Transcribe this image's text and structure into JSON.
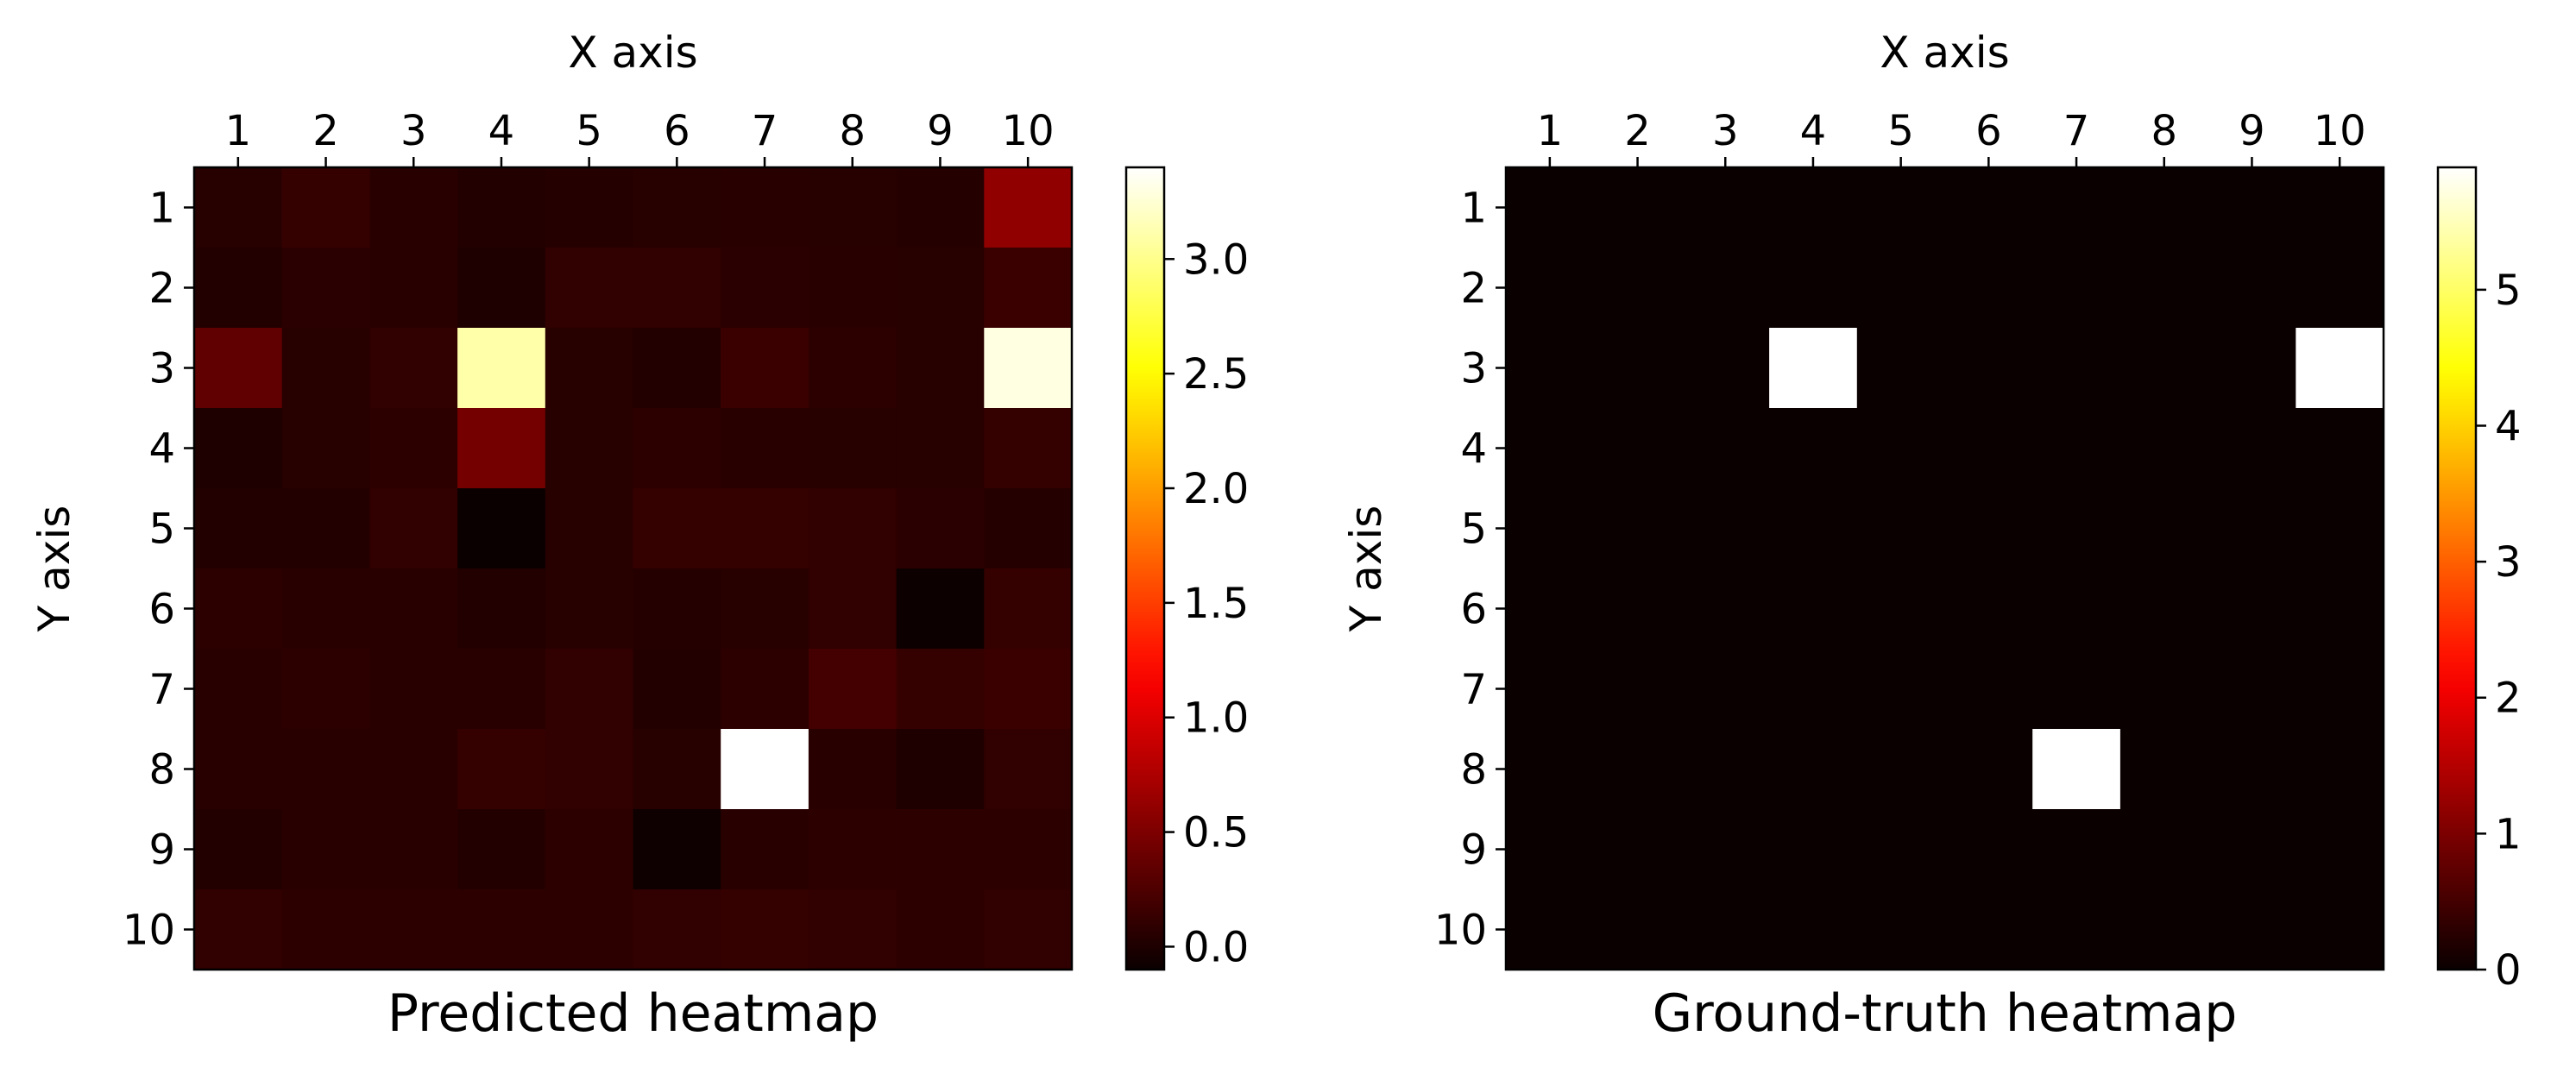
{
  "chart_data": [
    {
      "type": "heatmap",
      "title": "Predicted heatmap",
      "xlabel": "X axis",
      "ylabel": "Y axis",
      "x_categories": [
        "1",
        "2",
        "3",
        "4",
        "5",
        "6",
        "7",
        "8",
        "9",
        "10"
      ],
      "y_categories": [
        "1",
        "2",
        "3",
        "4",
        "5",
        "6",
        "7",
        "8",
        "9",
        "10"
      ],
      "colormap": "hot",
      "color_range": [
        -0.1,
        3.4
      ],
      "colorbar_ticks": [
        "0.0",
        "0.5",
        "1.0",
        "1.5",
        "2.0",
        "2.5",
        "3.0"
      ],
      "values": [
        [
          0.05,
          0.12,
          0.06,
          0.03,
          0.04,
          0.05,
          0.06,
          0.05,
          0.04,
          0.6
        ],
        [
          0.02,
          0.07,
          0.06,
          0.0,
          0.1,
          0.1,
          0.07,
          0.06,
          0.05,
          0.15
        ],
        [
          0.35,
          0.05,
          0.1,
          3.1,
          0.05,
          0.02,
          0.15,
          0.08,
          0.05,
          3.3
        ],
        [
          0.0,
          0.05,
          0.08,
          0.45,
          0.05,
          0.08,
          0.06,
          0.05,
          0.05,
          0.12
        ],
        [
          0.02,
          0.03,
          0.1,
          -0.1,
          0.05,
          0.12,
          0.12,
          0.1,
          0.07,
          0.04
        ],
        [
          0.08,
          0.06,
          0.06,
          0.02,
          0.05,
          0.04,
          0.05,
          0.1,
          -0.09,
          0.12
        ],
        [
          0.06,
          0.08,
          0.06,
          0.06,
          0.1,
          0.03,
          0.08,
          0.2,
          0.12,
          0.15
        ],
        [
          0.06,
          0.06,
          0.06,
          0.12,
          0.1,
          0.05,
          3.4,
          0.06,
          0.0,
          0.1
        ],
        [
          0.02,
          0.06,
          0.06,
          0.03,
          0.08,
          -0.08,
          0.06,
          0.08,
          0.08,
          0.08
        ],
        [
          0.1,
          0.08,
          0.08,
          0.08,
          0.08,
          0.1,
          0.12,
          0.1,
          0.08,
          0.1
        ]
      ]
    },
    {
      "type": "heatmap",
      "title": "Ground-truth heatmap",
      "xlabel": "X axis",
      "ylabel": "Y axis",
      "x_categories": [
        "1",
        "2",
        "3",
        "4",
        "5",
        "6",
        "7",
        "8",
        "9",
        "10"
      ],
      "y_categories": [
        "1",
        "2",
        "3",
        "4",
        "5",
        "6",
        "7",
        "8",
        "9",
        "10"
      ],
      "colormap": "hot",
      "color_range": [
        0,
        5.9
      ],
      "colorbar_ticks": [
        "0",
        "1",
        "2",
        "3",
        "4",
        "5"
      ],
      "values": [
        [
          0,
          0,
          0,
          0,
          0,
          0,
          0,
          0,
          0,
          0
        ],
        [
          0,
          0,
          0,
          0,
          0,
          0,
          0,
          0,
          0,
          0
        ],
        [
          0,
          0,
          0,
          5.9,
          0,
          0,
          0,
          0,
          0,
          5.9
        ],
        [
          0,
          0,
          0,
          0,
          0,
          0,
          0,
          0,
          0,
          0
        ],
        [
          0,
          0,
          0,
          0,
          0,
          0,
          0,
          0,
          0,
          0
        ],
        [
          0,
          0,
          0,
          0,
          0,
          0,
          0,
          0,
          0,
          0
        ],
        [
          0,
          0,
          0,
          0,
          0,
          0,
          0,
          0,
          0,
          0
        ],
        [
          0,
          0,
          0,
          0,
          0,
          0,
          5.9,
          0,
          0,
          0
        ],
        [
          0,
          0,
          0,
          0,
          0,
          0,
          0,
          0,
          0,
          0
        ],
        [
          0,
          0,
          0,
          0,
          0,
          0,
          0,
          0,
          0,
          0
        ]
      ]
    }
  ]
}
